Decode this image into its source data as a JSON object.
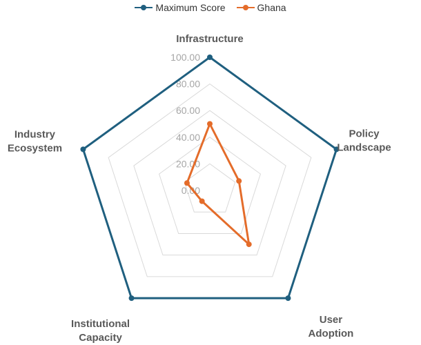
{
  "chart_data": {
    "type": "radar",
    "title": "",
    "axes": [
      "Infrastructure",
      "Policy Landscape",
      "User Adoption",
      "Institutional Capacity",
      "Industry Ecosystem"
    ],
    "axis_label_lines": [
      [
        "Infrastructure"
      ],
      [
        "Policy",
        "Landscape"
      ],
      [
        "User",
        "Adoption"
      ],
      [
        "Institutional",
        "Capacity"
      ],
      [
        "Industry",
        "Ecosystem"
      ]
    ],
    "rlim": [
      0,
      100
    ],
    "ticks": [
      "0.00",
      "20.00",
      "40.00",
      "60.00",
      "80.00",
      "100.00"
    ],
    "grid": true,
    "legend_position": "top",
    "series": [
      {
        "name": "Maximum Score",
        "color": "#1f5f7f",
        "values": [
          100,
          100,
          100,
          100,
          100
        ]
      },
      {
        "name": "Ghana",
        "color": "#e46c2a",
        "values": [
          50,
          23,
          50,
          10,
          18
        ]
      }
    ]
  }
}
